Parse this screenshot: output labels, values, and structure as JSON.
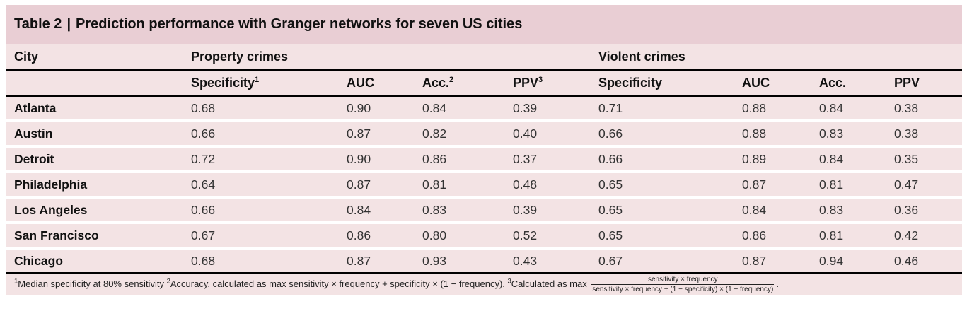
{
  "table": {
    "title": {
      "prefix": "Table 2",
      "separator": "|",
      "text": "Prediction performance with Granger networks for seven US cities"
    },
    "header": {
      "city": "City",
      "group_property": "Property crimes",
      "group_violent": "Violent crimes",
      "property_cols": [
        {
          "label": "Specificity",
          "sup": "1"
        },
        {
          "label": "AUC",
          "sup": ""
        },
        {
          "label": "Acc.",
          "sup": "2"
        },
        {
          "label": "PPV",
          "sup": "3"
        }
      ],
      "violent_cols": [
        {
          "label": "Specificity",
          "sup": ""
        },
        {
          "label": "AUC",
          "sup": ""
        },
        {
          "label": "Acc.",
          "sup": ""
        },
        {
          "label": "PPV",
          "sup": ""
        }
      ]
    },
    "rows": [
      {
        "city": "Atlanta",
        "values": [
          "0.68",
          "0.90",
          "0.84",
          "0.39",
          "0.71",
          "0.88",
          "0.84",
          "0.38"
        ]
      },
      {
        "city": "Austin",
        "values": [
          "0.66",
          "0.87",
          "0.82",
          "0.40",
          "0.66",
          "0.88",
          "0.83",
          "0.38"
        ]
      },
      {
        "city": "Detroit",
        "values": [
          "0.72",
          "0.90",
          "0.86",
          "0.37",
          "0.66",
          "0.89",
          "0.84",
          "0.35"
        ]
      },
      {
        "city": "Philadelphia",
        "values": [
          "0.64",
          "0.87",
          "0.81",
          "0.48",
          "0.65",
          "0.87",
          "0.81",
          "0.47"
        ]
      },
      {
        "city": "Los Angeles",
        "values": [
          "0.66",
          "0.84",
          "0.83",
          "0.39",
          "0.65",
          "0.84",
          "0.83",
          "0.36"
        ]
      },
      {
        "city": "San Francisco",
        "values": [
          "0.67",
          "0.86",
          "0.80",
          "0.52",
          "0.65",
          "0.86",
          "0.81",
          "0.42"
        ]
      },
      {
        "city": "Chicago",
        "values": [
          "0.68",
          "0.87",
          "0.93",
          "0.43",
          "0.67",
          "0.87",
          "0.94",
          "0.46"
        ]
      }
    ]
  },
  "footnote": {
    "note1_sup": "1",
    "note1_text": "Median specificity at 80% sensitivity ",
    "note2_sup": "2",
    "note2_text": "Accuracy, calculated as max sensitivity × frequency + specificity × (1 − frequency). ",
    "note3_sup": "3",
    "note3_text": "Calculated as max ",
    "fraction_numerator": "sensitivity × frequency",
    "fraction_denominator": "sensitivity × frequency + (1 − specificity) × (1 − frequency)",
    "terminator": "."
  },
  "colors": {
    "title_bar_bg": "#e9ced4",
    "row_bg": "#f3e3e4",
    "rule": "#000000",
    "text": "#1a1a1a"
  }
}
